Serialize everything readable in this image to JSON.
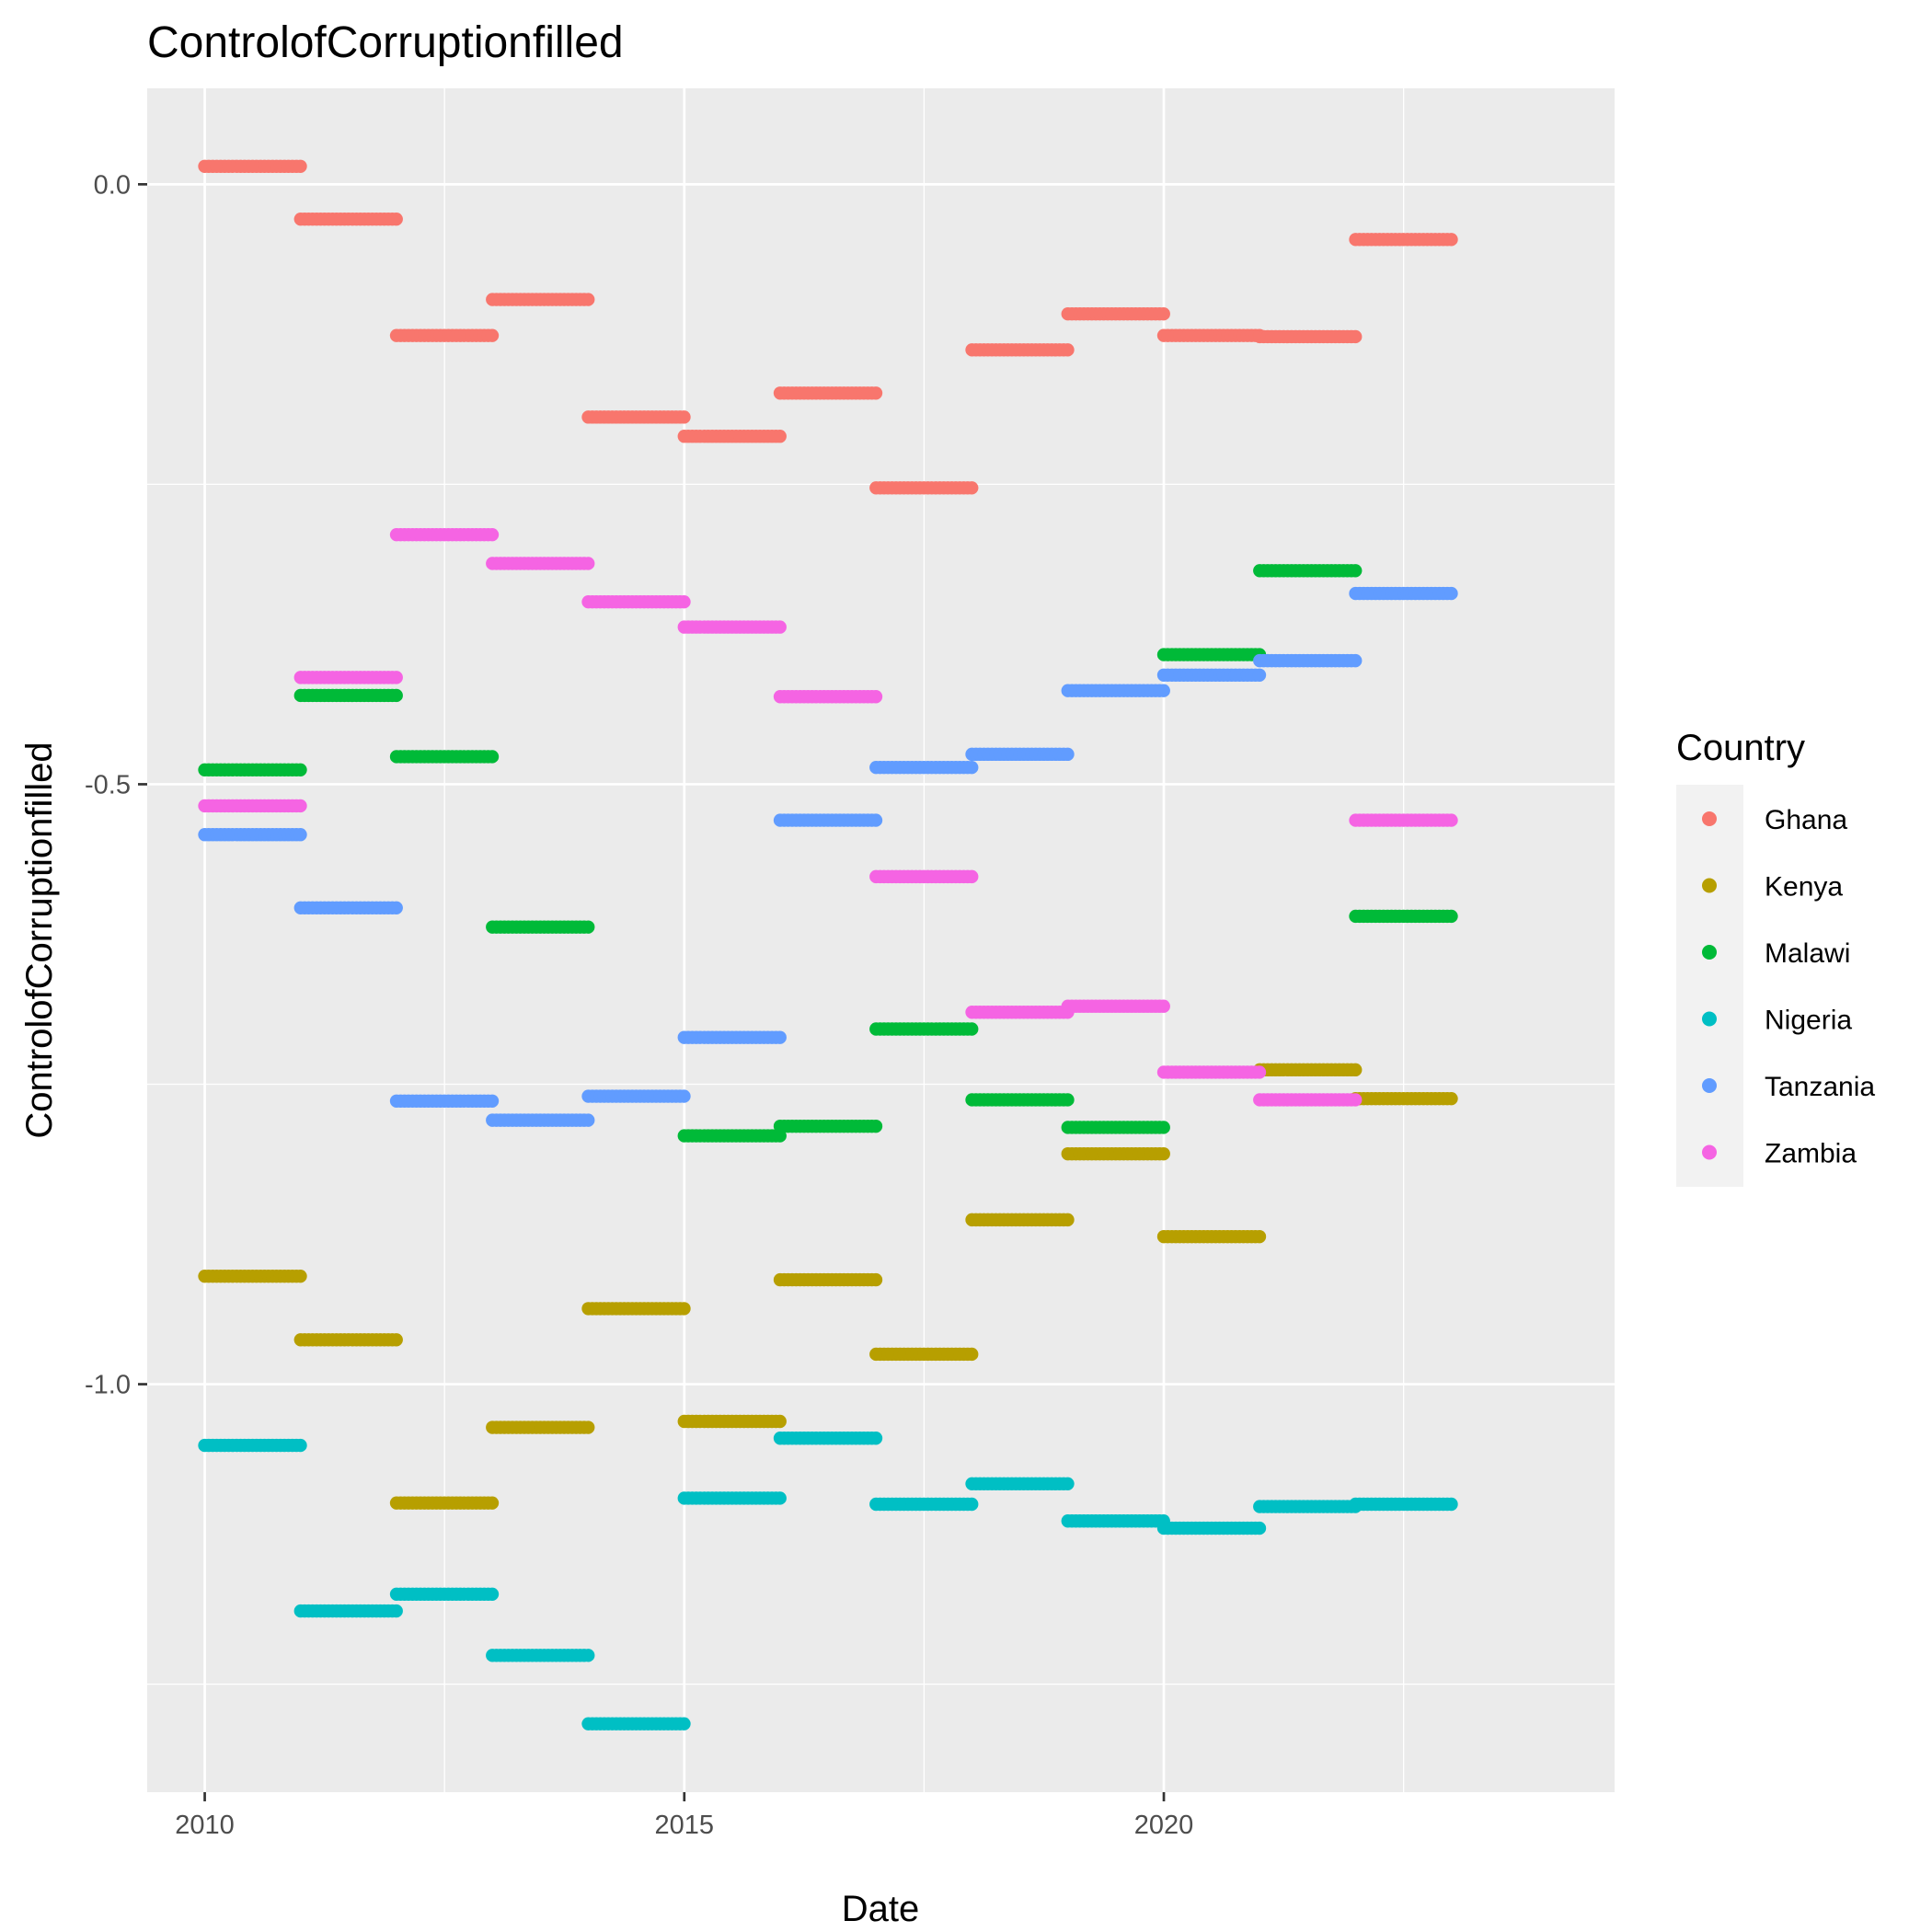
{
  "chart_data": {
    "type": "scatter",
    "title": "ControlofCorruptionfilled",
    "xlabel": "Date",
    "ylabel": "ControlofCorruptionfilled",
    "xlim": [
      2009.4,
      2024.7
    ],
    "ylim": [
      -1.34,
      0.08
    ],
    "x_ticks": [
      2010,
      2015,
      2020
    ],
    "x_tick_labels": [
      "2010",
      "2015",
      "2020"
    ],
    "y_ticks": [
      0.0,
      -0.5,
      -1.0
    ],
    "y_tick_labels": [
      "0.0",
      "-0.5",
      "-1.0"
    ],
    "grid": true,
    "legend_title": "Country",
    "legend_position": "right",
    "segment_note": "Each yearly value is plotted as a daily point from Jan 1 to Dec 31 of that year, forming horizontal runs.",
    "years": [
      2010,
      2011,
      2012,
      2013,
      2014,
      2015,
      2016,
      2017,
      2018,
      2019,
      2020,
      2021,
      2022
    ],
    "series": [
      {
        "name": "Ghana",
        "color": "#F8766D",
        "values": [
          0.015,
          -0.029,
          -0.126,
          -0.096,
          -0.194,
          -0.21,
          -0.174,
          -0.253,
          -0.138,
          -0.108,
          -0.126,
          -0.127,
          -0.046
        ]
      },
      {
        "name": "Kenya",
        "color": "#B79F00",
        "values": [
          -0.91,
          -0.963,
          -1.099,
          -1.036,
          -0.937,
          -1.031,
          -0.913,
          -0.975,
          -0.863,
          -0.808,
          -0.877,
          -0.738,
          -0.762
        ]
      },
      {
        "name": "Malawi",
        "color": "#00BA38",
        "values": [
          -0.488,
          -0.426,
          -0.477,
          -0.619,
          null,
          -0.793,
          -0.785,
          -0.704,
          -0.763,
          -0.786,
          -0.392,
          -0.322,
          -0.61
        ]
      },
      {
        "name": "Nigeria",
        "color": "#00BFC4",
        "values": [
          -1.051,
          -1.189,
          -1.175,
          -1.226,
          -1.283,
          -1.095,
          -1.045,
          -1.1,
          -1.083,
          -1.114,
          -1.12,
          -1.102,
          -1.1
        ]
      },
      {
        "name": "Tanzania",
        "color": "#619CFF",
        "values": [
          -0.542,
          -0.603,
          -0.764,
          -0.78,
          -0.76,
          -0.711,
          -0.53,
          -0.486,
          -0.475,
          -0.422,
          -0.409,
          -0.397,
          -0.341
        ]
      },
      {
        "name": "Zambia",
        "color": "#F564E3",
        "values": [
          -0.518,
          -0.411,
          -0.292,
          -0.316,
          -0.348,
          -0.369,
          -0.427,
          -0.577,
          -0.69,
          -0.685,
          -0.74,
          -0.763,
          -0.53
        ]
      }
    ]
  }
}
